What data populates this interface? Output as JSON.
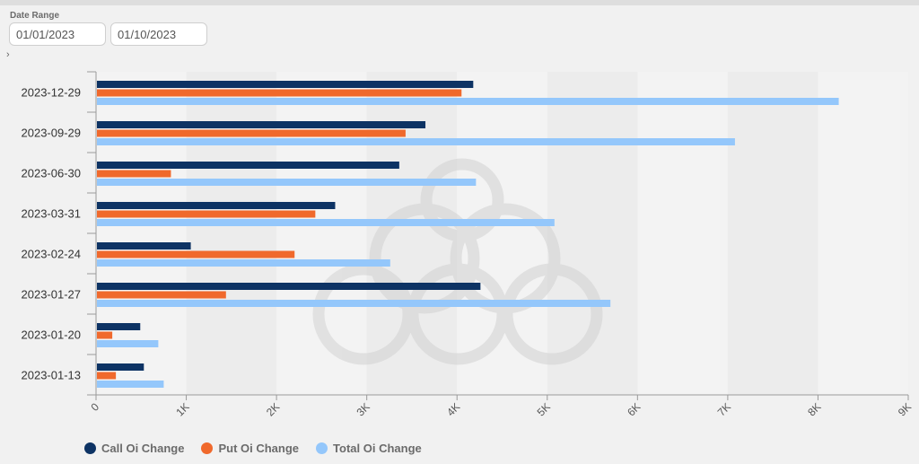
{
  "filter": {
    "label": "Date Range",
    "start_date": "01/01/2023",
    "end_date": "01/10/2023",
    "toggle_glyph": "›"
  },
  "chart_data": {
    "type": "bar",
    "orientation": "horizontal",
    "title": "",
    "xlabel": "",
    "ylabel": "",
    "categories": [
      "2023-12-29",
      "2023-09-29",
      "2023-06-30",
      "2023-03-31",
      "2023-02-24",
      "2023-01-27",
      "2023-01-20",
      "2023-01-13"
    ],
    "series": [
      {
        "name": "Call Oi Change",
        "color": "#0d3364",
        "values": [
          4180,
          3650,
          3360,
          2650,
          1050,
          4260,
          490,
          530
        ]
      },
      {
        "name": "Put Oi Change",
        "color": "#f0692c",
        "values": [
          4050,
          3430,
          830,
          2430,
          2200,
          1440,
          180,
          220
        ]
      },
      {
        "name": "Total Oi Change",
        "color": "#94c7fb",
        "values": [
          8230,
          7080,
          4210,
          5080,
          3260,
          5700,
          690,
          750
        ]
      }
    ],
    "xlim": [
      0,
      9000
    ],
    "xticks": [
      0,
      1000,
      2000,
      3000,
      4000,
      5000,
      6000,
      7000,
      8000,
      9000
    ],
    "xtick_labels": [
      "0",
      "1K",
      "2K",
      "3K",
      "4K",
      "5K",
      "6K",
      "7K",
      "8K",
      "9K"
    ],
    "grid": "alternating vertical bands",
    "legend": {
      "position": "bottom-left"
    }
  }
}
